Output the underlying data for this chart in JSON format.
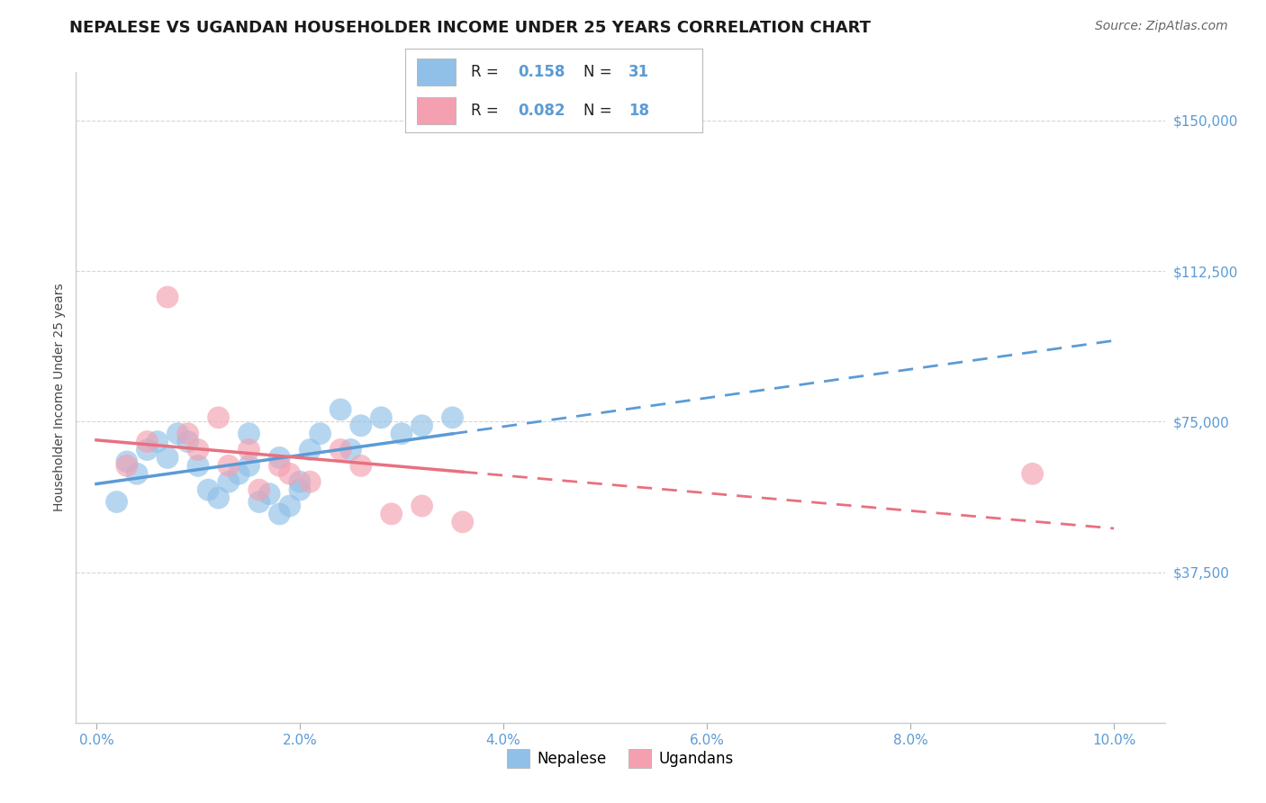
{
  "title": "NEPALESE VS UGANDAN HOUSEHOLDER INCOME UNDER 25 YEARS CORRELATION CHART",
  "source": "Source: ZipAtlas.com",
  "ylabel": "Householder Income Under 25 years",
  "xlabel_ticks": [
    "0.0%",
    "2.0%",
    "4.0%",
    "6.0%",
    "8.0%",
    "10.0%"
  ],
  "xlabel_vals": [
    0.0,
    0.02,
    0.04,
    0.06,
    0.08,
    0.1
  ],
  "ylim": [
    0,
    162000
  ],
  "xlim": [
    -0.002,
    0.105
  ],
  "yticks": [
    37500,
    75000,
    112500,
    150000
  ],
  "ytick_labels": [
    "$37,500",
    "$75,000",
    "$112,500",
    "$150,000"
  ],
  "r_nepalese": 0.158,
  "n_nepalese": 31,
  "r_ugandan": 0.082,
  "n_ugandan": 18,
  "nepalese_color": "#90C0E8",
  "ugandan_color": "#F4A0B0",
  "nepalese_line_color": "#5B9BD5",
  "ugandan_line_color": "#E87080",
  "background_color": "#FFFFFF",
  "grid_color": "#CCCCCC",
  "nepalese_x": [
    0.002,
    0.003,
    0.004,
    0.005,
    0.006,
    0.007,
    0.008,
    0.009,
    0.01,
    0.011,
    0.012,
    0.013,
    0.014,
    0.015,
    0.015,
    0.016,
    0.017,
    0.018,
    0.019,
    0.02,
    0.021,
    0.022,
    0.024,
    0.025,
    0.026,
    0.028,
    0.03,
    0.032,
    0.035,
    0.018,
    0.02
  ],
  "nepalese_y": [
    55000,
    65000,
    62000,
    68000,
    70000,
    66000,
    72000,
    70000,
    64000,
    58000,
    56000,
    60000,
    62000,
    64000,
    72000,
    55000,
    57000,
    52000,
    54000,
    58000,
    68000,
    72000,
    78000,
    68000,
    74000,
    76000,
    72000,
    74000,
    76000,
    66000,
    60000
  ],
  "ugandan_x": [
    0.003,
    0.005,
    0.007,
    0.009,
    0.01,
    0.012,
    0.013,
    0.015,
    0.016,
    0.018,
    0.019,
    0.021,
    0.024,
    0.026,
    0.029,
    0.032,
    0.036,
    0.092
  ],
  "ugandan_y": [
    64000,
    70000,
    106000,
    72000,
    68000,
    76000,
    64000,
    68000,
    58000,
    64000,
    62000,
    60000,
    68000,
    64000,
    52000,
    54000,
    50000,
    62000
  ],
  "title_fontsize": 13,
  "axis_label_fontsize": 10,
  "tick_fontsize": 11,
  "legend_fontsize": 12
}
